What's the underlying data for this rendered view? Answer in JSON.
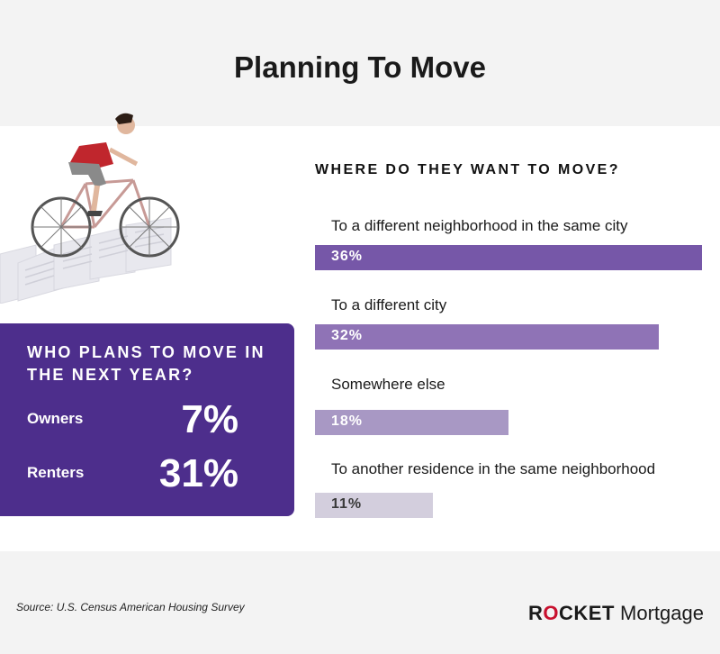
{
  "title": "Planning To Move",
  "who": {
    "title": "WHO PLANS TO MOVE IN THE NEXT YEAR?",
    "rows": [
      {
        "label": "Owners",
        "value": "7%"
      },
      {
        "label": "Renters",
        "value": "31%"
      }
    ]
  },
  "chart_data": {
    "type": "bar",
    "title": "WHERE DO THEY WANT TO MOVE?",
    "categories": [
      "To a different neighborhood in the same city",
      "To a different city",
      "Somewhere else",
      "To another residence in the same neighborhood"
    ],
    "values": [
      36,
      32,
      18,
      11
    ],
    "value_labels": [
      "36%",
      "32%",
      "18%",
      "11%"
    ],
    "xlim": [
      0,
      36
    ],
    "colors": [
      "#7657a8",
      "#8f73b6",
      "#a898c4",
      "#d3cedd"
    ]
  },
  "footer": {
    "source": "Source: U.S. Census American Housing Survey",
    "logo_r": "R",
    "logo_o": "O",
    "logo_rest": "CKET",
    "logo_mortgage": "Mortgage"
  }
}
